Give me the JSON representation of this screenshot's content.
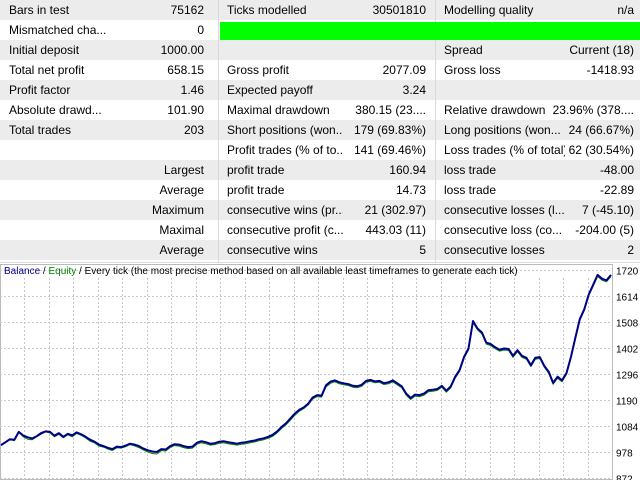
{
  "report": {
    "rows": [
      {
        "cells": [
          {
            "label": "Bars in test",
            "value": "75162"
          },
          {
            "label": "Ticks modelled",
            "value": "30501810"
          },
          {
            "label": "Modelling quality",
            "value": "n/a"
          }
        ]
      },
      {
        "cells": [
          {
            "label": "Mismatched cha...",
            "value": "0"
          }
        ]
      },
      {
        "cells": [
          {
            "label": "Initial deposit",
            "value": "1000.00"
          },
          {
            "label": "",
            "value": ""
          },
          {
            "label": "Spread",
            "value": "Current (18)"
          }
        ]
      },
      {
        "cells": [
          {
            "label": "Total net profit",
            "value": "658.15"
          },
          {
            "label": "Gross profit",
            "value": "2077.09"
          },
          {
            "label": "Gross loss",
            "value": "-1418.93"
          }
        ]
      },
      {
        "cells": [
          {
            "label": "Profit factor",
            "value": "1.46"
          },
          {
            "label": "Expected payoff",
            "value": "3.24"
          },
          {
            "label": "",
            "value": ""
          }
        ]
      },
      {
        "cells": [
          {
            "label": "Absolute drawd...",
            "value": "101.90"
          },
          {
            "label": "Maximal drawdown",
            "value": "380.15 (23...."
          },
          {
            "label": "Relative drawdown",
            "value": "23.96% (378...."
          }
        ]
      },
      {
        "cells": [
          {
            "label": "Total trades",
            "value": "203"
          },
          {
            "label": "Short positions (won...",
            "value": "179 (69.83%)"
          },
          {
            "label": "Long positions (won...",
            "value": "24 (66.67%)"
          }
        ]
      },
      {
        "cells": [
          {
            "label": "",
            "value": ""
          },
          {
            "label": "Profit trades (% of to...",
            "value": "141 (69.46%)"
          },
          {
            "label": "Loss trades (% of total)",
            "value": "62 (30.54%)"
          }
        ]
      },
      {
        "cells": [
          {
            "label": "",
            "value": "Largest"
          },
          {
            "label": "profit trade",
            "value": "160.94"
          },
          {
            "label": "loss trade",
            "value": "-48.00"
          }
        ]
      },
      {
        "cells": [
          {
            "label": "",
            "value": "Average"
          },
          {
            "label": "profit trade",
            "value": "14.73"
          },
          {
            "label": "loss trade",
            "value": "-22.89"
          }
        ]
      },
      {
        "cells": [
          {
            "label": "",
            "value": "Maximum"
          },
          {
            "label": "consecutive wins (pr...",
            "value": "21 (302.97)"
          },
          {
            "label": "consecutive losses (l...",
            "value": "7 (-45.10)"
          }
        ]
      },
      {
        "cells": [
          {
            "label": "",
            "value": "Maximal"
          },
          {
            "label": "consecutive profit (c...",
            "value": "443.03 (11)"
          },
          {
            "label": "consecutive loss (co...",
            "value": "-204.00 (5)"
          }
        ]
      },
      {
        "cells": [
          {
            "label": "",
            "value": "Average"
          },
          {
            "label": "consecutive wins",
            "value": "5"
          },
          {
            "label": "consecutive losses",
            "value": "2"
          }
        ]
      }
    ]
  },
  "graph": {
    "legend_balance": "Balance",
    "legend_sep1": " / ",
    "legend_equity": "Equity",
    "legend_sep2": " / ",
    "legend_rest": "Every tick (the most precise method based on all available least timeframes to generate each tick)"
  },
  "chart_data": {
    "type": "line",
    "ylim": [
      900,
      1740
    ],
    "y_ticks": [
      "1720",
      "1614",
      "1508",
      "1402",
      "1296",
      "1190",
      "1084",
      "978",
      "872"
    ],
    "y_tick_values": [
      1720,
      1614,
      1508,
      1402,
      1296,
      1190,
      1084,
      978,
      872
    ],
    "grid": true,
    "colors": {
      "balance": "#00008b",
      "equity": "#008000",
      "grid": "#c8c8c8",
      "quality": "#00ff00"
    },
    "series": [
      {
        "name": "Balance",
        "values": [
          1006,
          1018,
          1030,
          1028,
          1060,
          1045,
          1038,
          1033,
          1042,
          1055,
          1062,
          1060,
          1045,
          1055,
          1040,
          1052,
          1046,
          1058,
          1050,
          1040,
          1028,
          1020,
          1008,
          1002,
          995,
          990,
          1000,
          998,
          1004,
          1012,
          1008,
          1002,
          992,
          985,
          980,
          978,
          990,
          988,
          1002,
          1010,
          1008,
          1002,
          998,
          1000,
          1016,
          1022,
          1018,
          1012,
          1014,
          1020,
          1022,
          1018,
          1015,
          1012,
          1016,
          1018,
          1022,
          1025,
          1030,
          1034,
          1040,
          1048,
          1062,
          1080,
          1095,
          1115,
          1135,
          1150,
          1160,
          1175,
          1200,
          1210,
          1208,
          1250,
          1265,
          1270,
          1262,
          1258,
          1255,
          1248,
          1246,
          1252,
          1268,
          1272,
          1266,
          1268,
          1259,
          1262,
          1270,
          1258,
          1246,
          1216,
          1198,
          1212,
          1210,
          1216,
          1230,
          1232,
          1235,
          1248,
          1228,
          1245,
          1285,
          1312,
          1366,
          1400,
          1512,
          1482,
          1465,
          1424,
          1418,
          1405,
          1395,
          1400,
          1398,
          1370,
          1393,
          1370,
          1362,
          1332,
          1362,
          1365,
          1330,
          1305,
          1260,
          1285,
          1270,
          1300,
          1365,
          1445,
          1520,
          1560,
          1620,
          1660,
          1700,
          1684,
          1678,
          1700
        ]
      },
      {
        "name": "Equity",
        "values": [
          1005,
          1016,
          1028,
          1024,
          1058,
          1040,
          1030,
          1028,
          1040,
          1050,
          1060,
          1056,
          1040,
          1050,
          1036,
          1048,
          1040,
          1054,
          1046,
          1036,
          1022,
          1015,
          1002,
          998,
          990,
          984,
          995,
          994,
          1000,
          1008,
          1003,
          996,
          986,
          978,
          972,
          970,
          984,
          982,
          996,
          1004,
          1002,
          996,
          992,
          994,
          1010,
          1016,
          1012,
          1006,
          1008,
          1014,
          1016,
          1012,
          1009,
          1006,
          1010,
          1012,
          1016,
          1019,
          1024,
          1028,
          1034,
          1042,
          1056,
          1074,
          1089,
          1108,
          1128,
          1144,
          1155,
          1170,
          1194,
          1204,
          1202,
          1244,
          1258,
          1264,
          1256,
          1252,
          1249,
          1242,
          1240,
          1246,
          1262,
          1266,
          1260,
          1262,
          1253,
          1256,
          1264,
          1252,
          1240,
          1210,
          1192,
          1206,
          1204,
          1210,
          1224,
          1226,
          1229,
          1242,
          1222,
          1239,
          1279,
          1306,
          1360,
          1394,
          1506,
          1476,
          1459,
          1418,
          1412,
          1399,
          1389,
          1394,
          1392,
          1364,
          1387,
          1364,
          1356,
          1326,
          1356,
          1359,
          1324,
          1299,
          1254,
          1279,
          1264,
          1294,
          1359,
          1439,
          1514,
          1554,
          1614,
          1654,
          1694,
          1678,
          1672,
          1694
        ]
      }
    ]
  }
}
